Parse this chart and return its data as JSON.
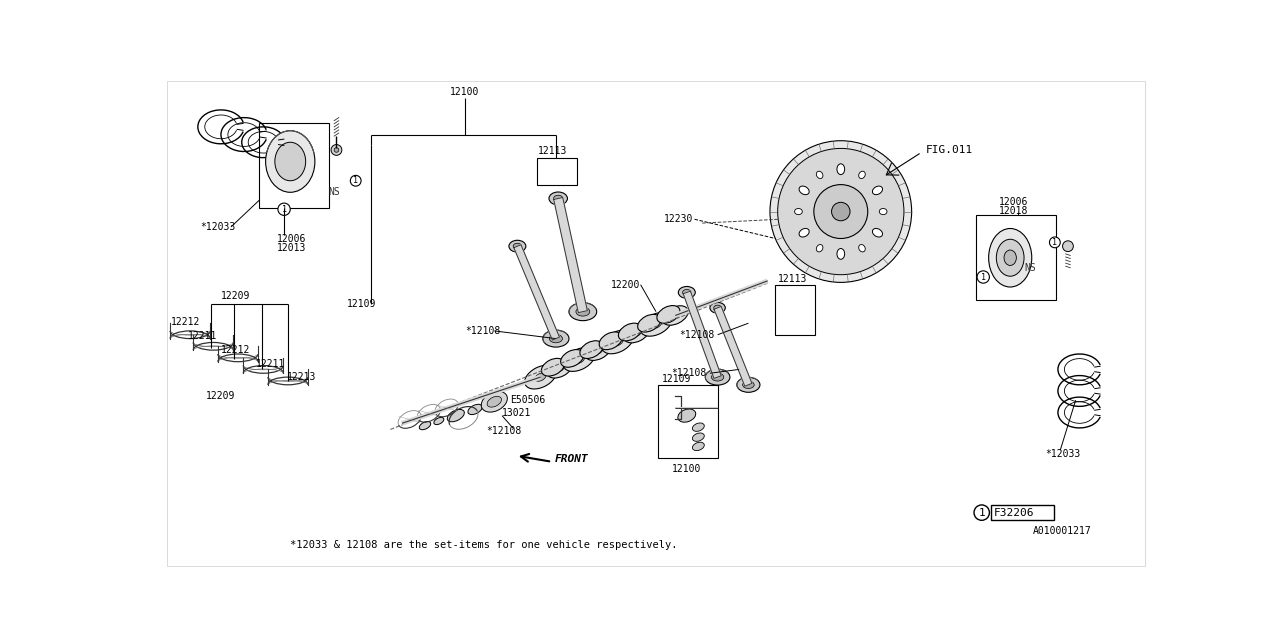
{
  "bg_color": "#ffffff",
  "line_color": "#000000",
  "footnote": "*12033 & 12108 are the set-items for one vehicle respectively.",
  "diagram_id": "A010001217",
  "legend_box_label": "F32206",
  "fig_ref": "FIG.011"
}
